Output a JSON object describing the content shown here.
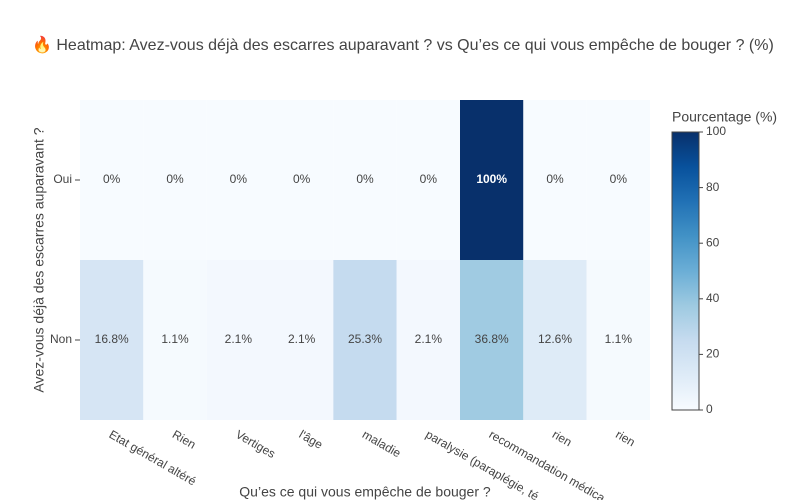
{
  "chart_data": {
    "type": "heatmap",
    "title": "🔥 Heatmap: Avez-vous déjà des escarres auparavant ? vs Qu’es ce qui vous empêche de bouger ? (%)",
    "x_title": "Qu’es ce qui vous empêche de bouger ?",
    "y_title": "Avez-vous déjà des escarres auparavant ?",
    "x": [
      "Etat général altéré",
      "Rien",
      "Vertiges",
      "l'âge",
      "maladie",
      "paralysie (paraplégie, té",
      "recommandation médica",
      "rien",
      "rien"
    ],
    "y": [
      "Oui",
      "Non"
    ],
    "z": [
      [
        0,
        0,
        0,
        0,
        0,
        0,
        100,
        0,
        0
      ],
      [
        16.8,
        1.1,
        2.1,
        2.1,
        25.3,
        2.1,
        36.8,
        12.6,
        1.1
      ]
    ],
    "value_labels": [
      [
        "0%",
        "0%",
        "0%",
        "0%",
        "0%",
        "0%",
        "100%",
        "0%",
        "0%"
      ],
      [
        "16.8%",
        "1.1%",
        "2.1%",
        "2.1%",
        "25.3%",
        "2.1%",
        "36.8%",
        "12.6%",
        "1.1%"
      ]
    ],
    "colorbar_title": "Pourcentage (%)",
    "zlim": [
      0,
      100
    ],
    "zticks": [
      0,
      20,
      40,
      60,
      80,
      100
    ],
    "colorscale": [
      "#f7fbff",
      "#deebf7",
      "#c6dbef",
      "#9ecae1",
      "#6baed6",
      "#4292c6",
      "#2171b5",
      "#08519c",
      "#08306b"
    ]
  }
}
